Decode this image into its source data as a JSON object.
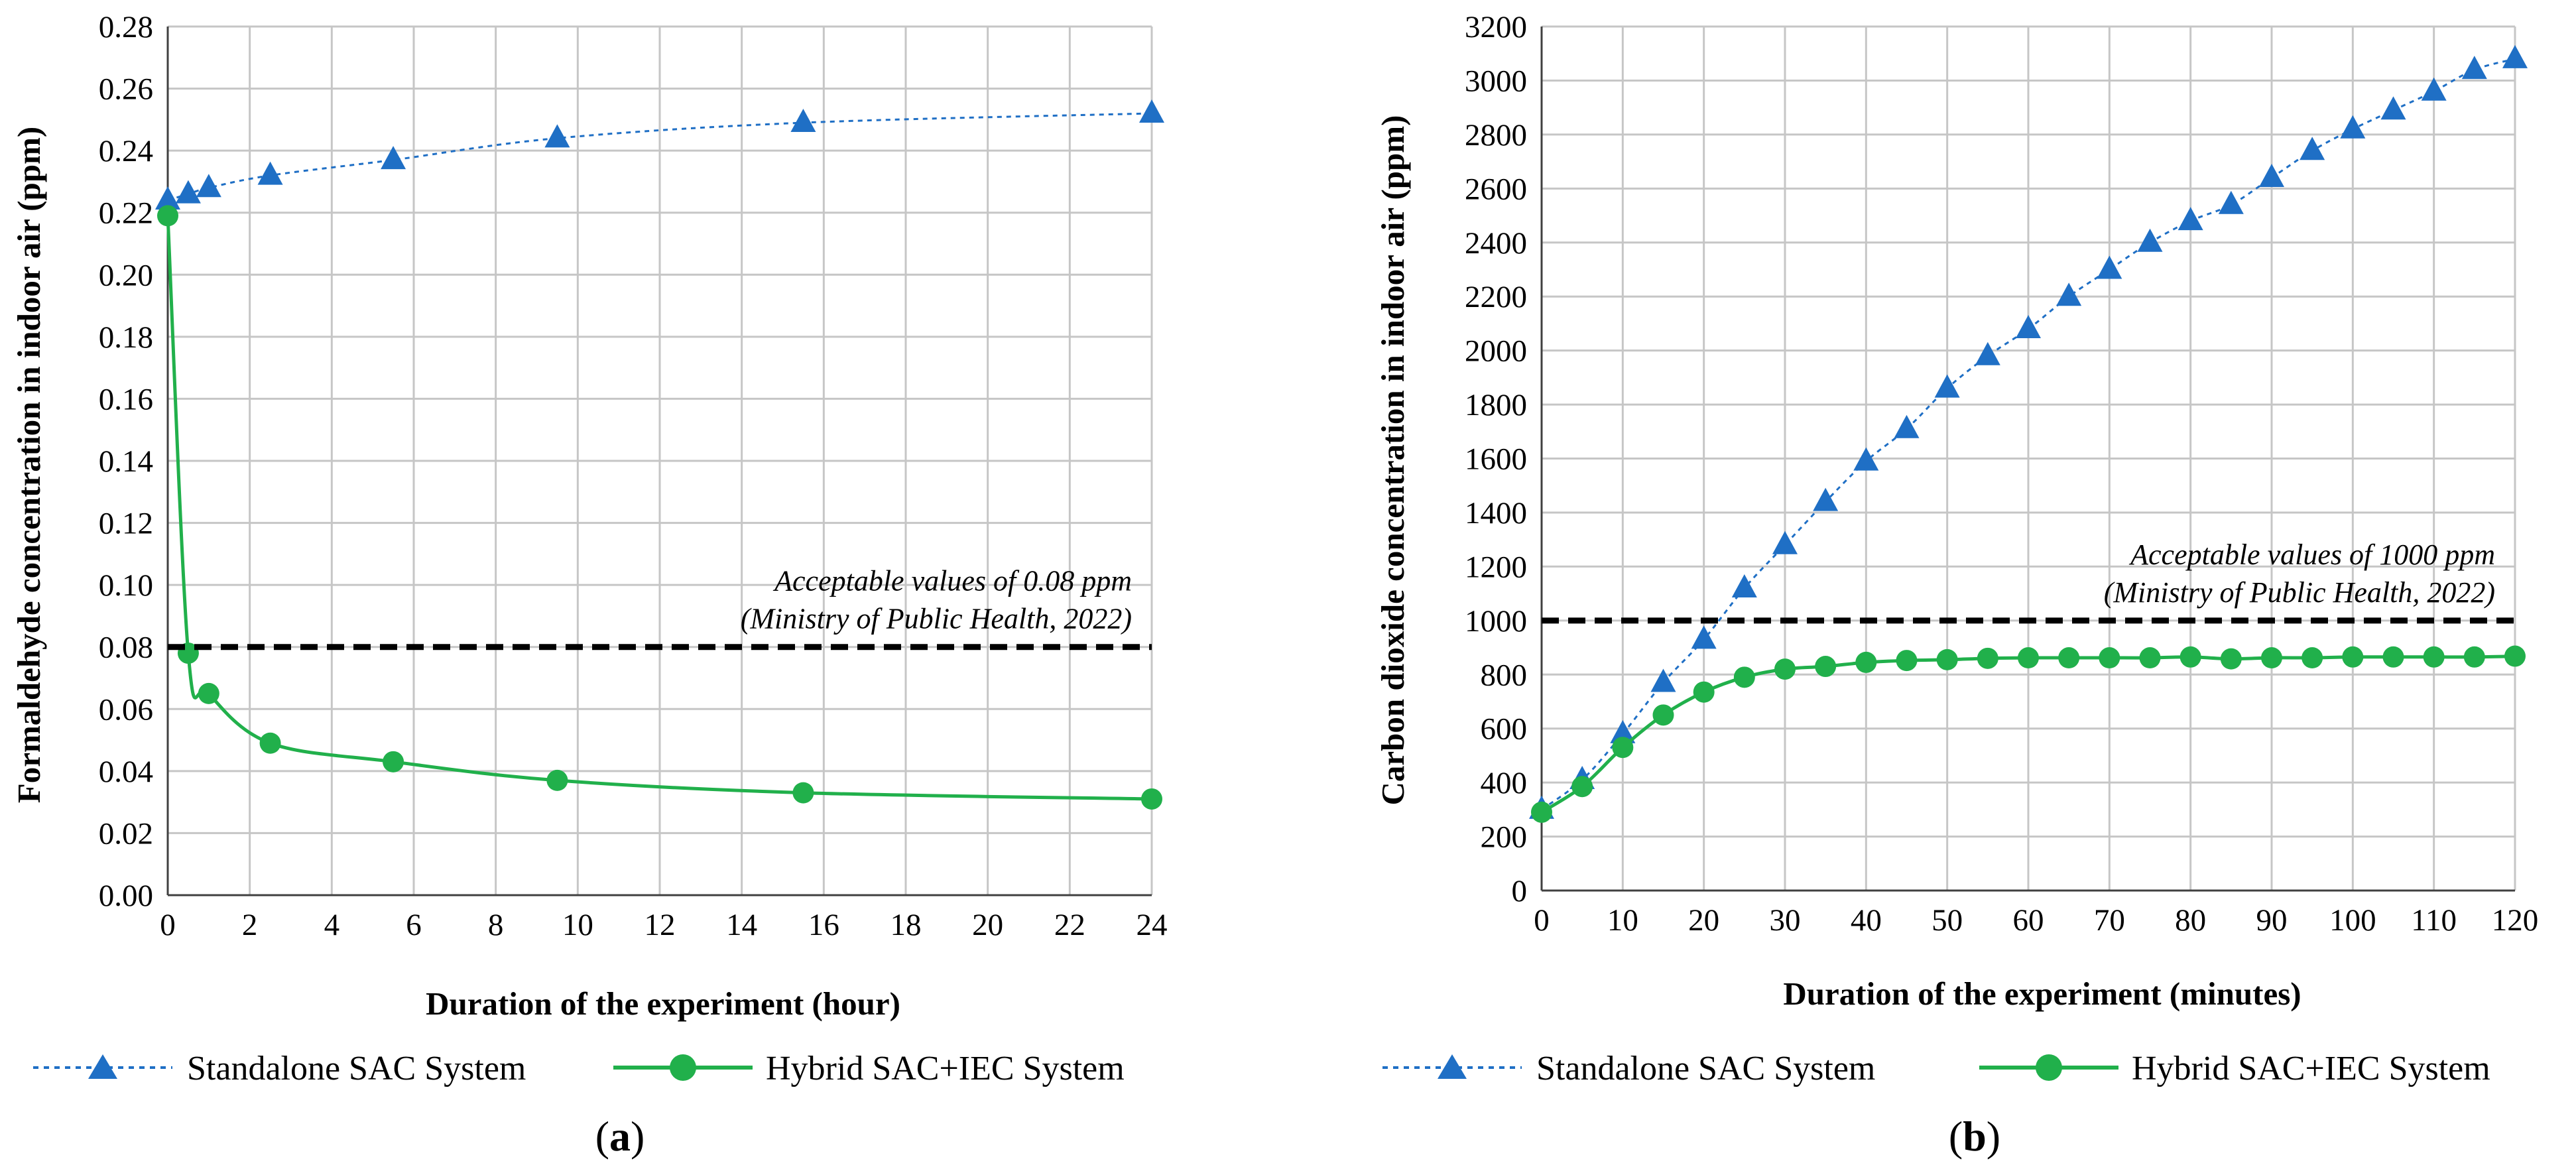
{
  "chart_data": [
    {
      "panel_id": "a",
      "type": "line",
      "caption": "a",
      "title": "",
      "xlabel": "Duration of the experiment (hour)",
      "ylabel": "Formaldehyde concentration in indoor air (ppm)",
      "xlim": [
        0,
        24
      ],
      "ylim": [
        0,
        0.28
      ],
      "xticks": [
        0,
        2,
        4,
        6,
        8,
        10,
        12,
        14,
        16,
        18,
        20,
        22,
        24
      ],
      "yticks": [
        0,
        0.02,
        0.04,
        0.06,
        0.08,
        0.1,
        0.12,
        0.14,
        0.16,
        0.18,
        0.2,
        0.22,
        0.24,
        0.26,
        0.28
      ],
      "yticklabels": [
        "0.00",
        "0.02",
        "0.04",
        "0.06",
        "0.08",
        "0.10",
        "0.12",
        "0.14",
        "0.16",
        "0.18",
        "0.20",
        "0.22",
        "0.24",
        "0.26",
        "0.28"
      ],
      "grid": true,
      "series": [
        {
          "name": "Standalone SAC System",
          "color": "#1f6fc5",
          "marker": "triangle",
          "linestyle": "dotted",
          "x": [
            0,
            0.5,
            1,
            2.5,
            5.5,
            9.5,
            15.5,
            24
          ],
          "y": [
            0.224,
            0.226,
            0.228,
            0.232,
            0.237,
            0.244,
            0.249,
            0.252
          ]
        },
        {
          "name": "Hybrid SAC+IEC System",
          "color": "#21b04b",
          "marker": "circle",
          "linestyle": "solid",
          "x": [
            0,
            0.5,
            1,
            2.5,
            5.5,
            9.5,
            15.5,
            24
          ],
          "y": [
            0.219,
            0.078,
            0.065,
            0.049,
            0.043,
            0.037,
            0.033,
            0.031
          ]
        }
      ],
      "reference_line": {
        "value": 0.08,
        "label_line1": "Acceptable values of 0.08 ppm",
        "label_line2": "(Ministry of Public Health, 2022)"
      },
      "legend": [
        "Standalone SAC System",
        "Hybrid SAC+IEC System"
      ]
    },
    {
      "panel_id": "b",
      "type": "line",
      "caption": "b",
      "title": "",
      "xlabel": "Duration of the experiment (minutes)",
      "ylabel": "Carbon dioxide concentration in indoor air (ppm)",
      "xlim": [
        0,
        120
      ],
      "ylim": [
        0,
        3200
      ],
      "xticks": [
        0,
        10,
        20,
        30,
        40,
        50,
        60,
        70,
        80,
        90,
        100,
        110,
        120
      ],
      "yticks": [
        0,
        200,
        400,
        600,
        800,
        1000,
        1200,
        1400,
        1600,
        1800,
        2000,
        2200,
        2400,
        2600,
        2800,
        3000,
        3200
      ],
      "yticklabels": [
        "0",
        "200",
        "400",
        "600",
        "800",
        "1000",
        "1200",
        "1400",
        "1600",
        "1800",
        "2000",
        "2200",
        "2400",
        "2600",
        "2800",
        "3000",
        "3200"
      ],
      "grid": true,
      "series": [
        {
          "name": "Standalone SAC System",
          "color": "#1f6fc5",
          "marker": "triangle",
          "linestyle": "dotted",
          "x": [
            0,
            5,
            10,
            15,
            20,
            25,
            30,
            35,
            40,
            45,
            50,
            55,
            60,
            65,
            70,
            75,
            80,
            85,
            90,
            95,
            100,
            105,
            110,
            115,
            120
          ],
          "y": [
            300,
            410,
            580,
            770,
            930,
            1120,
            1280,
            1440,
            1590,
            1710,
            1860,
            1980,
            2080,
            2200,
            2300,
            2400,
            2480,
            2540,
            2640,
            2740,
            2820,
            2890,
            2960,
            3040,
            3080
          ]
        },
        {
          "name": "Hybrid SAC+IEC System",
          "color": "#21b04b",
          "marker": "circle",
          "linestyle": "solid",
          "x": [
            0,
            5,
            10,
            15,
            20,
            25,
            30,
            35,
            40,
            45,
            50,
            55,
            60,
            65,
            70,
            75,
            80,
            85,
            90,
            95,
            100,
            105,
            110,
            115,
            120
          ],
          "y": [
            290,
            385,
            530,
            650,
            735,
            790,
            820,
            830,
            845,
            852,
            855,
            860,
            862,
            862,
            862,
            862,
            865,
            858,
            862,
            862,
            865,
            865,
            865,
            865,
            868
          ]
        }
      ],
      "reference_line": {
        "value": 1000,
        "label_line1": "Acceptable values of 1000 ppm",
        "label_line2": "(Ministry of Public Health, 2022)"
      },
      "legend": [
        "Standalone SAC System",
        "Hybrid SAC+IEC System"
      ]
    }
  ]
}
